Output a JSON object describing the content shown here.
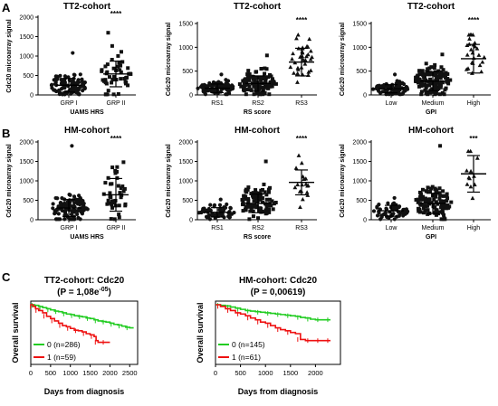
{
  "panel_labels": [
    "A",
    "B",
    "C"
  ],
  "chart_data": [
    {
      "type": "scatter",
      "subtype": "dot-plot-mean-sd",
      "title": "TT2-cohort",
      "ylabel": "Cdc20 microarray signal",
      "xlabel": "UAMS HRS",
      "ylim": [
        0,
        2000
      ],
      "yticks": [
        0,
        500,
        1000,
        1500,
        2000
      ],
      "categories": [
        "GRP I",
        "GRP II"
      ],
      "markers": [
        "circle",
        "square"
      ],
      "n": [
        100,
        50
      ],
      "mean": [
        250,
        540
      ],
      "sd": [
        175,
        330
      ],
      "max": [
        1080,
        1600
      ],
      "significance": [
        "",
        "****"
      ]
    },
    {
      "type": "scatter",
      "subtype": "dot-plot-mean-sd",
      "title": "TT2-cohort",
      "ylabel": "Cdc20 microarray signal",
      "xlabel": "RS score",
      "ylim": [
        0,
        1500
      ],
      "yticks": [
        0,
        500,
        1000,
        1500
      ],
      "categories": [
        "RS1",
        "RS2",
        "RS3"
      ],
      "markers": [
        "circle",
        "square",
        "triangle"
      ],
      "n": [
        90,
        110,
        35
      ],
      "mean": [
        140,
        240,
        690
      ],
      "sd": [
        90,
        160,
        290
      ],
      "max": [
        430,
        830,
        1260
      ],
      "significance": [
        "",
        "",
        "****"
      ]
    },
    {
      "type": "scatter",
      "subtype": "dot-plot-mean-sd",
      "title": "TT2-cohort",
      "ylabel": "Cdc20 microarray signal",
      "xlabel": "GPI",
      "ylim": [
        0,
        1500
      ],
      "yticks": [
        0,
        500,
        1000,
        1500
      ],
      "categories": [
        "Low",
        "Medium",
        "High"
      ],
      "markers": [
        "circle",
        "square",
        "triangle"
      ],
      "n": [
        80,
        140,
        25
      ],
      "mean": [
        130,
        290,
        760
      ],
      "sd": [
        85,
        200,
        300
      ],
      "max": [
        430,
        850,
        1260
      ],
      "significance": [
        "",
        "",
        "****"
      ]
    },
    {
      "type": "scatter",
      "subtype": "dot-plot-mean-sd",
      "title": "HM-cohort",
      "ylabel": "Cdc20 microarray signal",
      "xlabel": "UAMS HRS",
      "ylim": [
        0,
        2000
      ],
      "yticks": [
        0,
        500,
        1000,
        1500,
        2000
      ],
      "categories": [
        "GRP I",
        "GRP II"
      ],
      "markers": [
        "circle",
        "square"
      ],
      "n": [
        110,
        40
      ],
      "mean": [
        300,
        640
      ],
      "sd": [
        220,
        420
      ],
      "max": [
        1900,
        1480
      ],
      "significance": [
        "",
        "****"
      ]
    },
    {
      "type": "scatter",
      "subtype": "dot-plot-mean-sd",
      "title": "HM-cohort",
      "ylabel": "Cdc20 microarray signal",
      "xlabel": "RS score",
      "ylim": [
        0,
        2000
      ],
      "yticks": [
        0,
        500,
        1000,
        1500,
        2000
      ],
      "categories": [
        "RS1",
        "RS2",
        "RS3"
      ],
      "markers": [
        "circle",
        "square",
        "triangle"
      ],
      "n": [
        60,
        90,
        18
      ],
      "mean": [
        190,
        420,
        960
      ],
      "sd": [
        120,
        240,
        320
      ],
      "max": [
        520,
        1500,
        1650
      ],
      "significance": [
        "",
        "",
        "****"
      ]
    },
    {
      "type": "scatter",
      "subtype": "dot-plot-mean-sd",
      "title": "HM-cohort",
      "ylabel": "Cdc20 microarray signal",
      "xlabel": "GPI",
      "ylim": [
        0,
        2000
      ],
      "yticks": [
        0,
        500,
        1000,
        1500,
        2000
      ],
      "categories": [
        "Low",
        "Medium",
        "High"
      ],
      "markers": [
        "circle",
        "square",
        "triangle"
      ],
      "n": [
        60,
        110,
        12
      ],
      "mean": [
        230,
        420,
        1180
      ],
      "sd": [
        140,
        260,
        470
      ],
      "max": [
        560,
        1900,
        1760
      ],
      "significance": [
        "",
        "",
        "***"
      ]
    },
    {
      "type": "line",
      "subtype": "kaplan-meier",
      "title": "TT2-cohort: Cdc20",
      "subtitle": "(P = 1,08e",
      "subtitle_sup": "-05",
      "subtitle_end": ")",
      "ylabel": "Overall survival",
      "xlabel": "Days from diagnosis",
      "xlim": [
        0,
        2700
      ],
      "ylim": [
        0,
        1
      ],
      "xticks": [
        0,
        500,
        1000,
        1500,
        2000,
        2500
      ],
      "series": [
        {
          "name": "0 (n=286)",
          "color": "#22cc22",
          "x": [
            0,
            100,
            200,
            300,
            400,
            500,
            600,
            700,
            800,
            900,
            1000,
            1100,
            1200,
            1300,
            1400,
            1500,
            1600,
            1700,
            1800,
            1900,
            2000,
            2100,
            2200,
            2300,
            2400,
            2500,
            2600
          ],
          "y": [
            1.0,
            0.99,
            0.97,
            0.95,
            0.93,
            0.91,
            0.89,
            0.88,
            0.86,
            0.84,
            0.83,
            0.81,
            0.8,
            0.79,
            0.77,
            0.76,
            0.74,
            0.72,
            0.71,
            0.7,
            0.68,
            0.66,
            0.65,
            0.63,
            0.61,
            0.6,
            0.6
          ]
        },
        {
          "name": "1 (n=59)",
          "color": "#ee1111",
          "x": [
            0,
            60,
            120,
            200,
            300,
            400,
            500,
            600,
            700,
            800,
            900,
            1000,
            1100,
            1200,
            1300,
            1400,
            1500,
            1600,
            1650,
            1700,
            1800,
            1900,
            2000
          ],
          "y": [
            1.0,
            0.97,
            0.93,
            0.9,
            0.86,
            0.8,
            0.76,
            0.72,
            0.68,
            0.64,
            0.62,
            0.59,
            0.56,
            0.55,
            0.53,
            0.5,
            0.48,
            0.45,
            0.38,
            0.35,
            0.35,
            0.35,
            0.35
          ]
        }
      ]
    },
    {
      "type": "line",
      "subtype": "kaplan-meier",
      "title": "HM-cohort: Cdc20",
      "subtitle": "(P = 0,00619)",
      "ylabel": "Overall survival",
      "xlabel": "Days from diagnosis",
      "xlim": [
        0,
        2500
      ],
      "ylim": [
        0,
        1
      ],
      "xticks": [
        0,
        500,
        1000,
        1500,
        2000
      ],
      "series": [
        {
          "name": "0 (n=145)",
          "color": "#22cc22",
          "x": [
            0,
            100,
            200,
            300,
            400,
            500,
            600,
            700,
            800,
            900,
            1000,
            1100,
            1200,
            1300,
            1400,
            1500,
            1600,
            1700,
            1800,
            1900,
            2000,
            2100,
            2200,
            2300
          ],
          "y": [
            1.0,
            0.99,
            0.98,
            0.96,
            0.94,
            0.92,
            0.9,
            0.89,
            0.88,
            0.87,
            0.86,
            0.85,
            0.84,
            0.83,
            0.82,
            0.81,
            0.8,
            0.78,
            0.77,
            0.75,
            0.74,
            0.74,
            0.74,
            0.74
          ]
        },
        {
          "name": "1 (n=61)",
          "color": "#ee1111",
          "x": [
            0,
            100,
            200,
            300,
            400,
            500,
            600,
            700,
            800,
            900,
            1000,
            1100,
            1200,
            1300,
            1400,
            1500,
            1600,
            1700,
            1800,
            1900,
            2000,
            2100,
            2200,
            2300
          ],
          "y": [
            1.0,
            0.97,
            0.93,
            0.9,
            0.86,
            0.84,
            0.81,
            0.77,
            0.74,
            0.7,
            0.68,
            0.64,
            0.6,
            0.57,
            0.55,
            0.52,
            0.5,
            0.4,
            0.38,
            0.38,
            0.38,
            0.38,
            0.38,
            0.38
          ]
        }
      ]
    }
  ]
}
